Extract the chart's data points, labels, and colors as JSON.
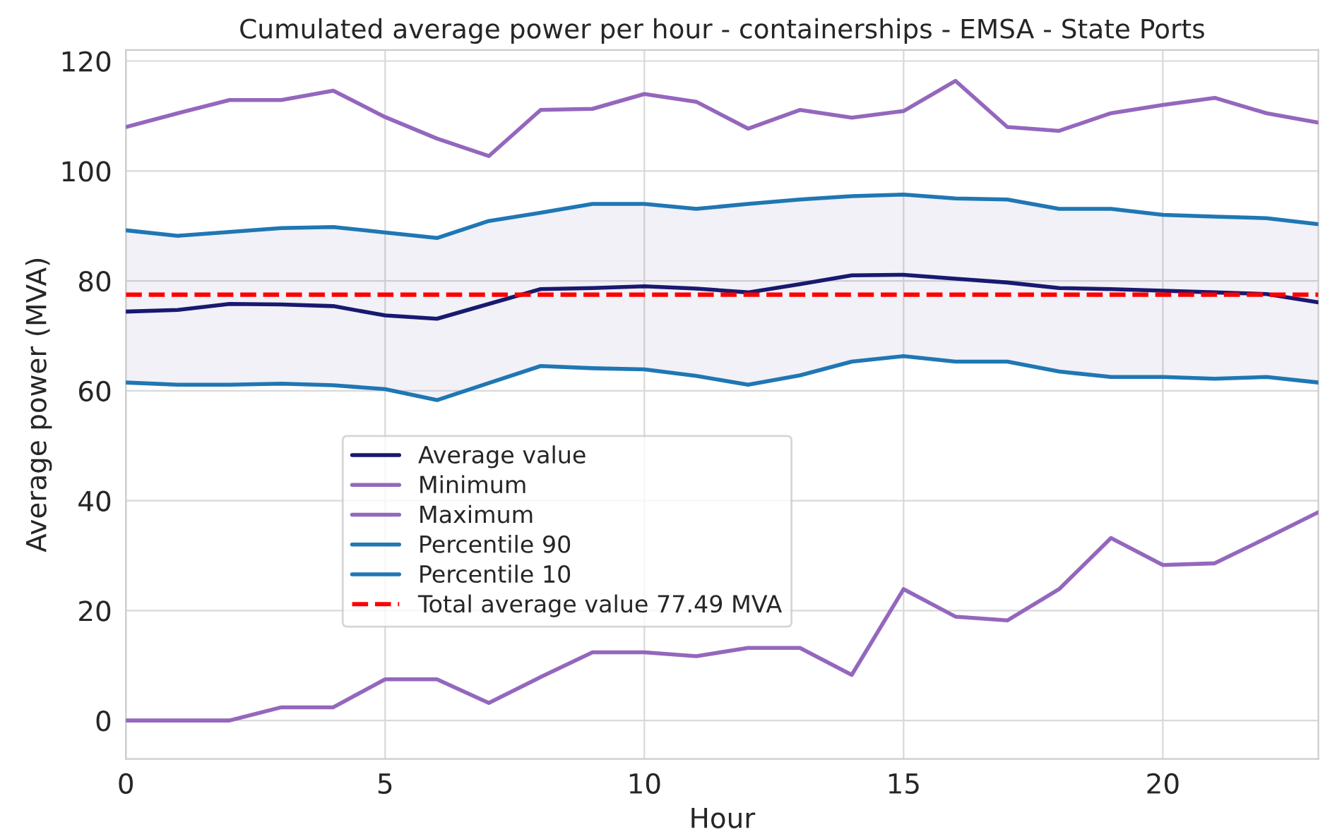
{
  "chart_data": {
    "type": "line",
    "title": "Cumulated average power per hour - containerships - EMSA - State Ports",
    "xlabel": "Hour",
    "ylabel": "Average power (MVA)",
    "x": [
      0,
      1,
      2,
      3,
      4,
      5,
      6,
      7,
      8,
      9,
      10,
      11,
      12,
      13,
      14,
      15,
      16,
      17,
      18,
      19,
      20,
      21,
      22,
      23
    ],
    "series": [
      {
        "name": "Average value",
        "color": "#191970",
        "values": [
          74.4,
          74.7,
          75.8,
          75.7,
          75.4,
          73.7,
          73.1,
          75.8,
          78.5,
          78.7,
          79.0,
          78.6,
          77.9,
          79.4,
          81.0,
          81.1,
          80.4,
          79.7,
          78.7,
          78.5,
          78.2,
          77.9,
          77.6,
          76.1
        ],
        "lower": [
          61.5,
          61.1,
          61.1,
          61.3,
          61.0,
          60.3,
          58.3,
          61.4,
          64.5,
          64.1,
          63.9,
          62.7,
          61.1,
          62.8,
          65.3,
          66.3,
          65.3,
          65.3,
          63.5,
          62.5,
          62.5,
          62.2,
          62.5,
          61.5
        ],
        "upper": [
          89.2,
          88.2,
          88.9,
          89.6,
          89.8,
          88.8,
          87.8,
          90.9,
          92.4,
          94.0,
          94.0,
          93.1,
          94.0,
          94.8,
          95.4,
          95.7,
          95.0,
          94.8,
          93.1,
          93.1,
          92.0,
          91.7,
          91.4,
          90.3
        ]
      },
      {
        "name": "Minimum",
        "color": "#9467bd",
        "values": [
          0,
          0,
          0,
          2.4,
          2.4,
          7.5,
          7.5,
          3.2,
          7.9,
          12.4,
          12.4,
          11.7,
          13.2,
          13.2,
          8.3,
          23.9,
          18.9,
          18.2,
          23.9,
          33.2,
          28.3,
          28.6,
          33.2,
          37.9
        ]
      },
      {
        "name": "Maximum",
        "color": "#9467bd",
        "values": [
          108.0,
          110.5,
          112.9,
          112.9,
          114.6,
          109.8,
          105.9,
          102.7,
          111.1,
          111.3,
          114.0,
          112.6,
          107.7,
          111.1,
          109.7,
          110.9,
          116.4,
          108.0,
          107.3,
          110.5,
          112.0,
          113.3,
          110.5,
          108.8
        ]
      },
      {
        "name": "Percentile 90",
        "color": "#1f77b4",
        "values": [
          89.2,
          88.2,
          88.9,
          89.6,
          89.8,
          88.8,
          87.8,
          90.9,
          92.4,
          94.0,
          94.0,
          93.1,
          94.0,
          94.8,
          95.4,
          95.7,
          95.0,
          94.8,
          93.1,
          93.1,
          92.0,
          91.7,
          91.4,
          90.3
        ]
      },
      {
        "name": "Percentile 10",
        "color": "#1f77b4",
        "values": [
          61.5,
          61.1,
          61.1,
          61.3,
          61.0,
          60.3,
          58.3,
          61.4,
          64.5,
          64.1,
          63.9,
          62.7,
          61.1,
          62.8,
          65.3,
          66.3,
          65.3,
          65.3,
          63.5,
          62.5,
          62.5,
          62.2,
          62.5,
          61.5
        ]
      }
    ],
    "ref_lines": [
      {
        "axis": "y",
        "value": 77.49,
        "label": "Total average value 77.49 MVA",
        "color": "#ff0000",
        "line_style": "dashed"
      }
    ],
    "xlim": [
      0,
      23
    ],
    "xticks": [
      0,
      5,
      10,
      15,
      20
    ],
    "ylim": [
      -7,
      122
    ],
    "yticks": [
      0,
      20,
      40,
      60,
      80,
      100,
      120
    ],
    "grid": true,
    "legend": "bottom",
    "marker": "none",
    "line_style": "solid"
  }
}
